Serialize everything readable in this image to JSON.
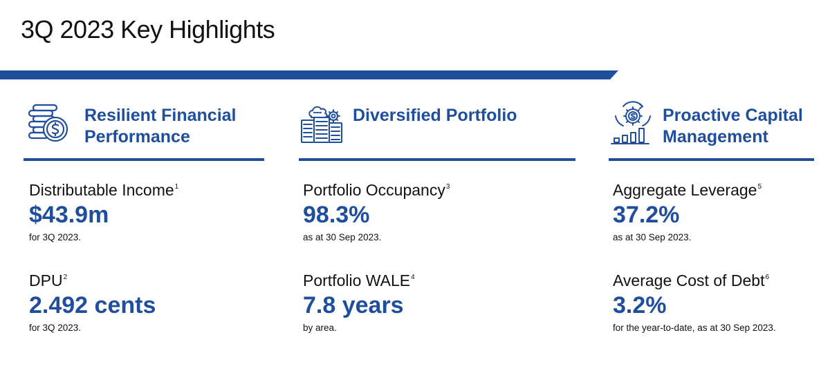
{
  "page": {
    "title": "3Q 2023 Key Highlights"
  },
  "colors": {
    "accent": "#1f4e9c"
  },
  "columns": [
    {
      "icon": "coin-stack-dollar-icon",
      "heading_line1": "Resilient Financial",
      "heading_line2": "Performance",
      "metrics": [
        {
          "label": "Distributable Income",
          "footnote": "1",
          "value": "$43.9m",
          "note": "for 3Q 2023."
        },
        {
          "label": "DPU",
          "footnote": "2",
          "value": "2.492 cents",
          "note": "for 3Q 2023."
        }
      ]
    },
    {
      "icon": "server-cloud-icon",
      "heading_line1": "Diversified Portfolio",
      "heading_line2": "",
      "metrics": [
        {
          "label": "Portfolio Occupancy",
          "footnote": "3",
          "value": "98.3%",
          "note": "as at 30 Sep 2023."
        },
        {
          "label": "Portfolio WALE",
          "footnote": "4",
          "value": "7.8 years",
          "note": "by area."
        }
      ]
    },
    {
      "icon": "capital-gear-chart-icon",
      "heading_line1": "Proactive Capital",
      "heading_line2": "Management",
      "metrics": [
        {
          "label": "Aggregate Leverage",
          "footnote": "5",
          "value": "37.2%",
          "note": "as at 30 Sep 2023."
        },
        {
          "label": "Average Cost of Debt",
          "footnote": "6",
          "value": "3.2%",
          "note": "for the year-to-date, as at 30 Sep 2023."
        }
      ]
    }
  ]
}
